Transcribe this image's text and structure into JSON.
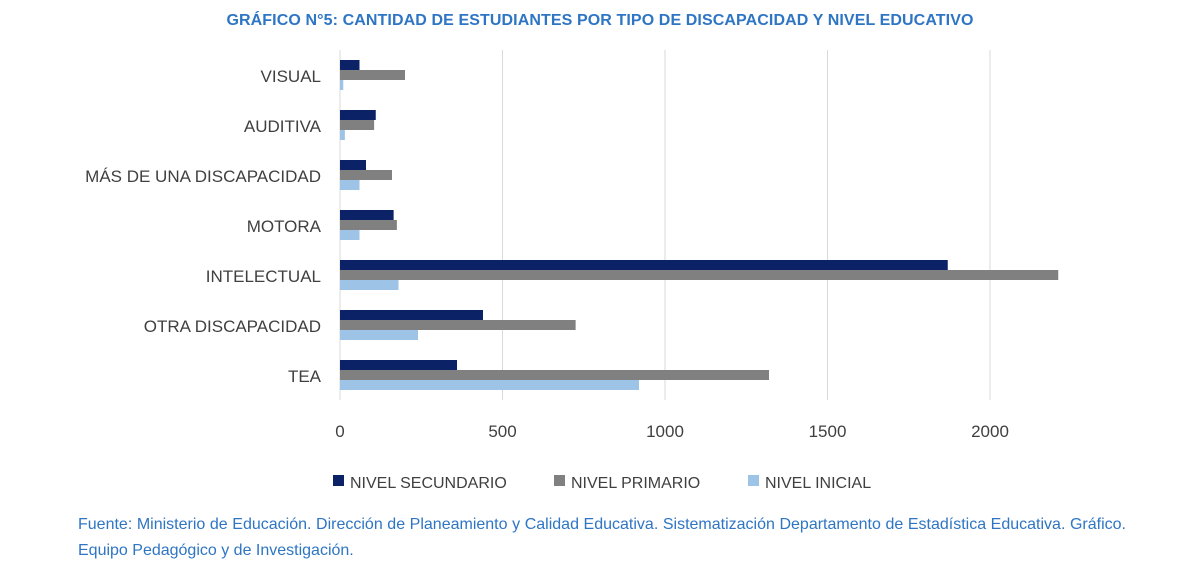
{
  "title": "GRÁFICO N°5: CANTIDAD DE ESTUDIANTES POR TIPO DE DISCAPACIDAD Y NIVEL EDUCATIVO",
  "source": "Fuente: Ministerio de Educación. Dirección de Planeamiento y Calidad Educativa. Sistematización Departamento de Estadística Educativa. Gráfico. Equipo Pedagógico y de Investigación.",
  "chart_data": {
    "type": "bar",
    "orientation": "horizontal",
    "title": "GRÁFICO N°5: CANTIDAD DE ESTUDIANTES POR TIPO DE DISCAPACIDAD Y NIVEL EDUCATIVO",
    "categories": [
      "VISUAL",
      "AUDITIVA",
      "MÁS DE UNA DISCAPACIDAD",
      "MOTORA",
      "INTELECTUAL",
      "OTRA DISCAPACIDAD",
      "TEA"
    ],
    "series": [
      {
        "name": "NIVEL SECUNDARIO",
        "color": "#0b2366",
        "values": [
          60,
          110,
          80,
          165,
          1870,
          440,
          360
        ]
      },
      {
        "name": "NIVEL PRIMARIO",
        "color": "#808080",
        "values": [
          200,
          105,
          160,
          175,
          2210,
          725,
          1320
        ]
      },
      {
        "name": "NIVEL INICIAL",
        "color": "#9dc3e6",
        "values": [
          10,
          15,
          60,
          60,
          180,
          240,
          920
        ]
      }
    ],
    "xlim": [
      0,
      2200
    ],
    "xticks": [
      0,
      500,
      1000,
      1500,
      2000
    ],
    "grid": true,
    "legend_position": "bottom"
  }
}
